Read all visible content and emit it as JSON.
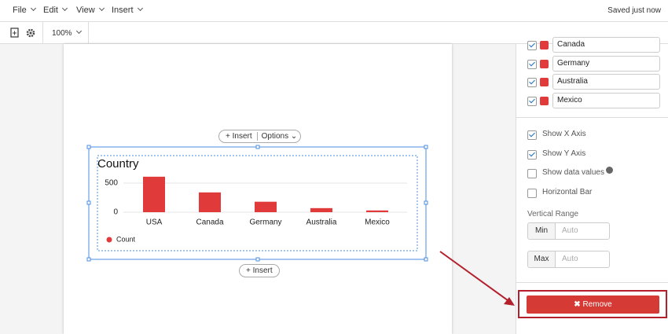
{
  "menu": [
    "File",
    "Edit",
    "View",
    "Insert"
  ],
  "status": "Saved just now",
  "zoom": "100%",
  "chart_toolbar": {
    "insert_above": "Insert",
    "options": "Options",
    "insert_below": "Insert"
  },
  "chart_data": {
    "type": "bar",
    "title": "Country",
    "categories": [
      "USA",
      "Canada",
      "Germany",
      "Australia",
      "Mexico"
    ],
    "series": [
      {
        "name": "Count",
        "color": "#e03a3a",
        "values": [
          610,
          340,
          180,
          70,
          30
        ]
      }
    ],
    "ylim": [
      0,
      700
    ],
    "yticks": [
      0,
      500
    ],
    "grid": true
  },
  "sidebar": {
    "series_items": [
      "Canada",
      "Germany",
      "Australia",
      "Mexico"
    ],
    "options": [
      {
        "label": "Show X Axis",
        "checked": true
      },
      {
        "label": "Show Y Axis",
        "checked": true
      },
      {
        "label": "Show data values",
        "checked": false
      },
      {
        "label": "Horizontal Bar",
        "checked": false
      }
    ],
    "range_title": "Vertical Range",
    "min": {
      "label": "Min",
      "placeholder": "Auto"
    },
    "max": {
      "label": "Max",
      "placeholder": "Auto"
    },
    "remove": "Remove"
  }
}
